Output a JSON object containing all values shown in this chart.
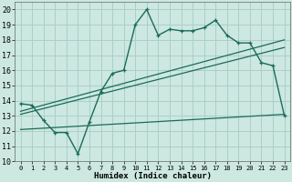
{
  "xlabel": "Humidex (Indice chaleur)",
  "background_color": "#cce8e0",
  "grid_color": "#aacfc8",
  "line_color": "#1a6b5a",
  "xlim": [
    -0.5,
    23.5
  ],
  "ylim": [
    10,
    20.5
  ],
  "xticks": [
    0,
    1,
    2,
    3,
    4,
    5,
    6,
    7,
    8,
    9,
    10,
    11,
    12,
    13,
    14,
    15,
    16,
    17,
    18,
    19,
    20,
    21,
    22,
    23
  ],
  "yticks": [
    10,
    11,
    12,
    13,
    14,
    15,
    16,
    17,
    18,
    19,
    20
  ],
  "line1_x": [
    0,
    1,
    2,
    3,
    4,
    5,
    6,
    7,
    8,
    9,
    10,
    11,
    12,
    13,
    14,
    15,
    16,
    17,
    18,
    19,
    20,
    21,
    22,
    23
  ],
  "line1_y": [
    13.8,
    13.7,
    12.7,
    11.9,
    11.9,
    10.5,
    12.6,
    14.6,
    15.8,
    16.0,
    19.0,
    20.0,
    18.3,
    18.7,
    18.6,
    18.6,
    18.8,
    19.3,
    18.3,
    17.8,
    17.8,
    16.5,
    16.3,
    13.0
  ],
  "line2_x": [
    0,
    23
  ],
  "line2_y": [
    13.1,
    17.5
  ],
  "line3_x": [
    0,
    23
  ],
  "line3_y": [
    13.3,
    18.0
  ],
  "line4_x": [
    0,
    23
  ],
  "line4_y": [
    12.1,
    13.1
  ]
}
